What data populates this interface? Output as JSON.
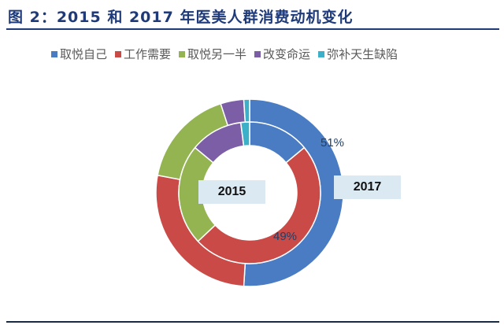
{
  "header": {
    "title": "图 2：2015 和 2017 年医美人群消费动机变化"
  },
  "legend": [
    {
      "label": "取悦自己",
      "color": "#4a7cc4"
    },
    {
      "label": "工作需要",
      "color": "#c94a47"
    },
    {
      "label": "取悦另一半",
      "color": "#93b451"
    },
    {
      "label": "改变命运",
      "color": "#7b5ea5"
    },
    {
      "label": "弥补天生缺陷",
      "color": "#3db0c9"
    }
  ],
  "labels": {
    "inner_year": "2015",
    "outer_year": "2017",
    "outer_blue_pct": "51%",
    "inner_red_pct": "49%"
  },
  "chart_data": {
    "type": "pie",
    "subtype": "doughnut (nested)",
    "title": "图 2：2015 和 2017 年医美人群消费动机变化",
    "categories": [
      "取悦自己",
      "工作需要",
      "取悦另一半",
      "改变命运",
      "弥补天生缺陷"
    ],
    "series": [
      {
        "name": "2015",
        "ring": "inner",
        "values": [
          14,
          49,
          23,
          12,
          2
        ]
      },
      {
        "name": "2017",
        "ring": "outer",
        "values": [
          51,
          27,
          17,
          4,
          1
        ]
      }
    ],
    "data_labels": {
      "2017 取悦自己": "51%",
      "2015 工作需要": "49%"
    },
    "legend_position": "top",
    "colors": [
      "#4a7cc4",
      "#c94a47",
      "#93b451",
      "#7b5ea5",
      "#3db0c9"
    ]
  }
}
